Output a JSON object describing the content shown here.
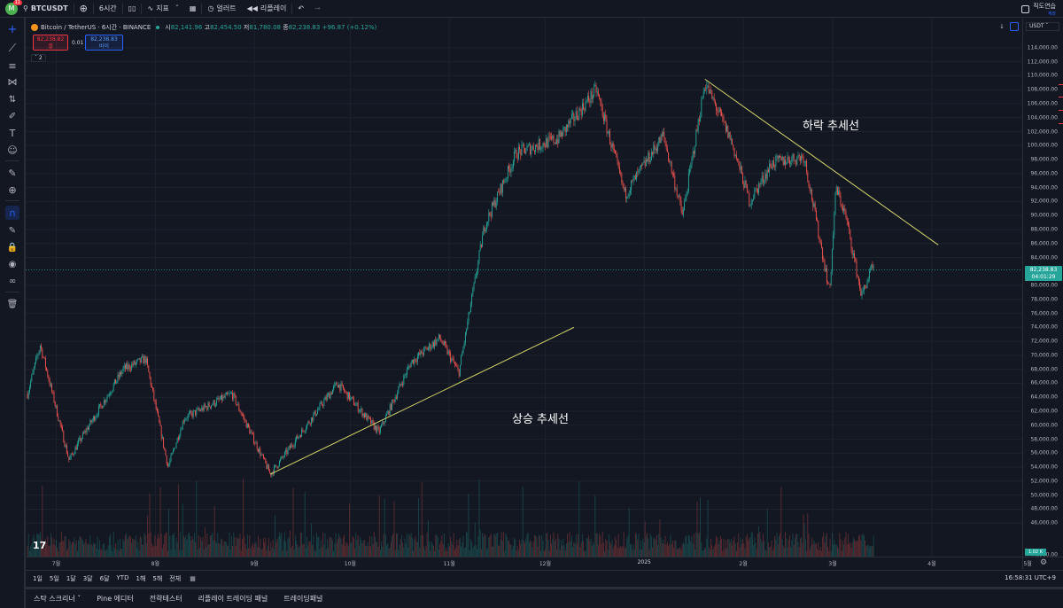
{
  "topbar": {
    "avatar_letter": "M",
    "notifications": "11",
    "symbol": "BTCUSDT",
    "interval": "6시간",
    "indicators_label": "지표",
    "alert_label": "얼러트",
    "replay_label": "리플레이",
    "paper_trading": {
      "line1": "직도연습",
      "line2": "계좌"
    }
  },
  "legend": {
    "title": "Bitcoin / TetherUS · 6시간 · BINANCE",
    "o_label": "시",
    "o": "82,141.96",
    "h_label": "고",
    "h": "82,454.50",
    "l_label": "저",
    "l": "81,780.08",
    "c_label": "종",
    "c": "82,238.83",
    "change": "+96.87 (+0.12%)",
    "sell_price": "82,238.82",
    "sell_label": "셀",
    "spread": "0.01",
    "buy_price": "82,238.83",
    "buy_label": "바이",
    "indicator_count": "2"
  },
  "annotations": {
    "downtrend": "하락 추세선",
    "uptrend": "상승 추세선"
  },
  "price_axis": {
    "currency": "USDT",
    "ticks": [
      "114,000.00",
      "112,000.00",
      "110,000.00",
      "108,000.00",
      "106,000.00",
      "104,000.00",
      "102,000.00",
      "100,000.00",
      "98,000.00",
      "96,000.00",
      "94,000.00",
      "92,000.00",
      "90,000.00",
      "88,000.00",
      "86,000.00",
      "84,000.00",
      "80,000.00",
      "78,000.00",
      "76,000.00",
      "74,000.00",
      "72,000.00",
      "70,000.00",
      "68,000.00",
      "66,000.00",
      "64,000.00",
      "62,000.00",
      "60,000.00",
      "58,000.00",
      "56,000.00",
      "54,000.00",
      "52,000.00",
      "50,000.00",
      "48,000.00",
      "46,000.00"
    ],
    "current_price": "82,238.83",
    "countdown": "04:01:29",
    "volume_label": "1.02 K",
    "partial_tick": "44,000.00"
  },
  "time_axis": {
    "ticks": [
      "7월",
      "8월",
      "9월",
      "10월",
      "11월",
      "12월",
      "2025",
      "2월",
      "3월",
      "4월",
      "5월"
    ]
  },
  "range_bar": {
    "ranges": [
      "1일",
      "5일",
      "1달",
      "3달",
      "6달",
      "YTD",
      "1해",
      "5해",
      "전체"
    ],
    "clock": "16:58:31 UTC+9"
  },
  "bottom_tabs": [
    "스탁 스크리너",
    "Pine 에디터",
    "전략테스터",
    "리플레이 트레이딩 패널",
    "트레이딩패널"
  ],
  "tv_logo": "17",
  "chart_data": {
    "type": "candlestick",
    "title": "Bitcoin / TetherUS · 6시간 · BINANCE",
    "symbol": "BTCUSDT",
    "ylim": [
      44000,
      115000
    ],
    "x_labels": [
      "7월",
      "8월",
      "9월",
      "10월",
      "11월",
      "12월",
      "2025",
      "2월",
      "3월",
      "4월",
      "5월"
    ],
    "series": [
      {
        "date": "2024-06-22",
        "close": 64500
      },
      {
        "date": "2024-06-26",
        "close": 71500
      },
      {
        "date": "2024-07-05",
        "close": 55000
      },
      {
        "date": "2024-07-08",
        "close": 57500
      },
      {
        "date": "2024-07-22",
        "close": 68000
      },
      {
        "date": "2024-07-29",
        "close": 69500
      },
      {
        "date": "2024-08-05",
        "close": 54000
      },
      {
        "date": "2024-08-10",
        "close": 61000
      },
      {
        "date": "2024-08-25",
        "close": 64500
      },
      {
        "date": "2024-09-06",
        "close": 53000
      },
      {
        "date": "2024-09-27",
        "close": 66000
      },
      {
        "date": "2024-10-10",
        "close": 59000
      },
      {
        "date": "2024-10-20",
        "close": 69000
      },
      {
        "date": "2024-10-29",
        "close": 72500
      },
      {
        "date": "2024-11-04",
        "close": 67500
      },
      {
        "date": "2024-11-12",
        "close": 88500
      },
      {
        "date": "2024-11-22",
        "close": 99000
      },
      {
        "date": "2024-12-05",
        "close": 101000
      },
      {
        "date": "2024-12-17",
        "close": 108000
      },
      {
        "date": "2024-12-26",
        "close": 93000
      },
      {
        "date": "2025-01-07",
        "close": 101500
      },
      {
        "date": "2025-01-13",
        "close": 90000
      },
      {
        "date": "2025-01-20",
        "close": 109000
      },
      {
        "date": "2025-01-28",
        "close": 101000
      },
      {
        "date": "2025-02-03",
        "close": 92000
      },
      {
        "date": "2025-02-10",
        "close": 97500
      },
      {
        "date": "2025-02-20",
        "close": 98500
      },
      {
        "date": "2025-02-26",
        "close": 84000
      },
      {
        "date": "2025-02-28",
        "close": 79000
      },
      {
        "date": "2025-03-02",
        "close": 94000
      },
      {
        "date": "2025-03-05",
        "close": 90000
      },
      {
        "date": "2025-03-10",
        "close": 78500
      },
      {
        "date": "2025-03-13",
        "close": 82238.83
      }
    ],
    "trendlines": [
      {
        "name": "상승 추세선",
        "from": {
          "date": "2024-09-06",
          "price": 53000
        },
        "to": {
          "date": "2024-12-10",
          "price": 74000
        }
      },
      {
        "name": "하락 추세선",
        "from": {
          "date": "2025-01-20",
          "price": 109500
        },
        "to": {
          "date": "2025-04-03",
          "price": 85800
        }
      }
    ],
    "current_price": 82238.83,
    "volume": true,
    "colors": {
      "up": "#26a69a",
      "down": "#ef5350",
      "trendline": "#d4d46a",
      "background": "#131722"
    }
  }
}
